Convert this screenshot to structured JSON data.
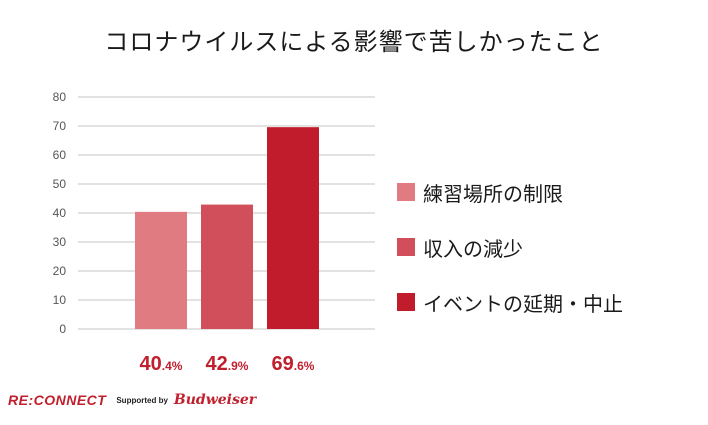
{
  "chart_data": {
    "type": "bar",
    "title": "コロナウイルスによる影響で苦しかったこと",
    "categories": [
      "練習場所の制限",
      "収入の減少",
      "イベントの延期・中止"
    ],
    "values": [
      40.4,
      42.9,
      69.6
    ],
    "value_labels": [
      {
        "big": "40",
        "small": ".4%"
      },
      {
        "big": "42",
        "small": ".9%"
      },
      {
        "big": "69",
        "small": ".6%"
      }
    ],
    "colors": [
      "#e07b82",
      "#d14f5a",
      "#c01c2c"
    ],
    "ylim": [
      0,
      80
    ],
    "yticks": [
      "0",
      "10",
      "20",
      "30",
      "40",
      "50",
      "60",
      "70",
      "80"
    ],
    "grid": true,
    "legend_position": "right"
  },
  "footer": {
    "brand": "RE:CONNECT",
    "supported_by": "Supported by",
    "sponsor": "Budweiser"
  }
}
